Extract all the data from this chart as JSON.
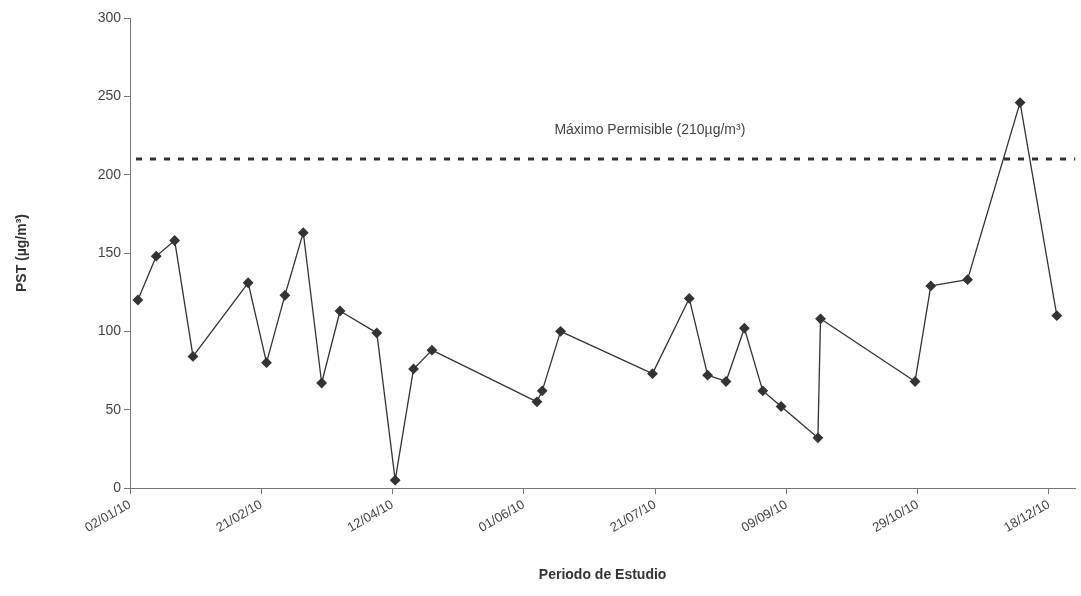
{
  "chart_data": {
    "type": "line",
    "xlabel": "Periodo de Estudio",
    "ylabel": "PST (µg/m³)",
    "x": [
      "2010-01-05",
      "2010-01-12",
      "2010-01-19",
      "2010-01-26",
      "2010-02-16",
      "2010-02-23",
      "2010-03-02",
      "2010-03-09",
      "2010-03-16",
      "2010-03-23",
      "2010-04-06",
      "2010-04-13",
      "2010-04-20",
      "2010-04-27",
      "2010-06-06",
      "2010-06-08",
      "2010-06-15",
      "2010-07-20",
      "2010-08-03",
      "2010-08-10",
      "2010-08-17",
      "2010-08-24",
      "2010-08-31",
      "2010-09-07",
      "2010-09-21",
      "2010-09-22",
      "2010-10-28",
      "2010-11-03",
      "2010-11-17",
      "2010-12-07",
      "2010-12-21"
    ],
    "series": [
      {
        "color": "#333333",
        "values": [
          120,
          148,
          158,
          84,
          131,
          80,
          123,
          163,
          67,
          113,
          99,
          5,
          76,
          88,
          55,
          62,
          100,
          73,
          121,
          72,
          68,
          102,
          62,
          52,
          32,
          108,
          68,
          129,
          133,
          246,
          110
        ]
      }
    ],
    "xlim": [
      "2010-01-02",
      "2010-12-28"
    ],
    "xticks": [
      {
        "value": "2010-01-02",
        "label": "02/01/10"
      },
      {
        "value": "2010-02-21",
        "label": "21/02/10"
      },
      {
        "value": "2010-04-12",
        "label": "12/04/10"
      },
      {
        "value": "2010-06-01",
        "label": "01/06/10"
      },
      {
        "value": "2010-07-21",
        "label": "21/07/10"
      },
      {
        "value": "2010-09-09",
        "label": "09/09/10"
      },
      {
        "value": "2010-10-29",
        "label": "29/10/10"
      },
      {
        "value": "2010-12-18",
        "label": "18/12/10"
      }
    ],
    "ylim": [
      0,
      300
    ],
    "yticks": [
      0,
      50,
      100,
      150,
      200,
      250,
      300
    ],
    "ref_lines": [
      {
        "axis": "y",
        "value": 210,
        "label": "Máximo Permisible (210µg/m³)",
        "color": "#333333",
        "line_style": "dashed"
      }
    ],
    "grid": false,
    "legend": false,
    "marker": "diamond",
    "line_style": "solid"
  }
}
